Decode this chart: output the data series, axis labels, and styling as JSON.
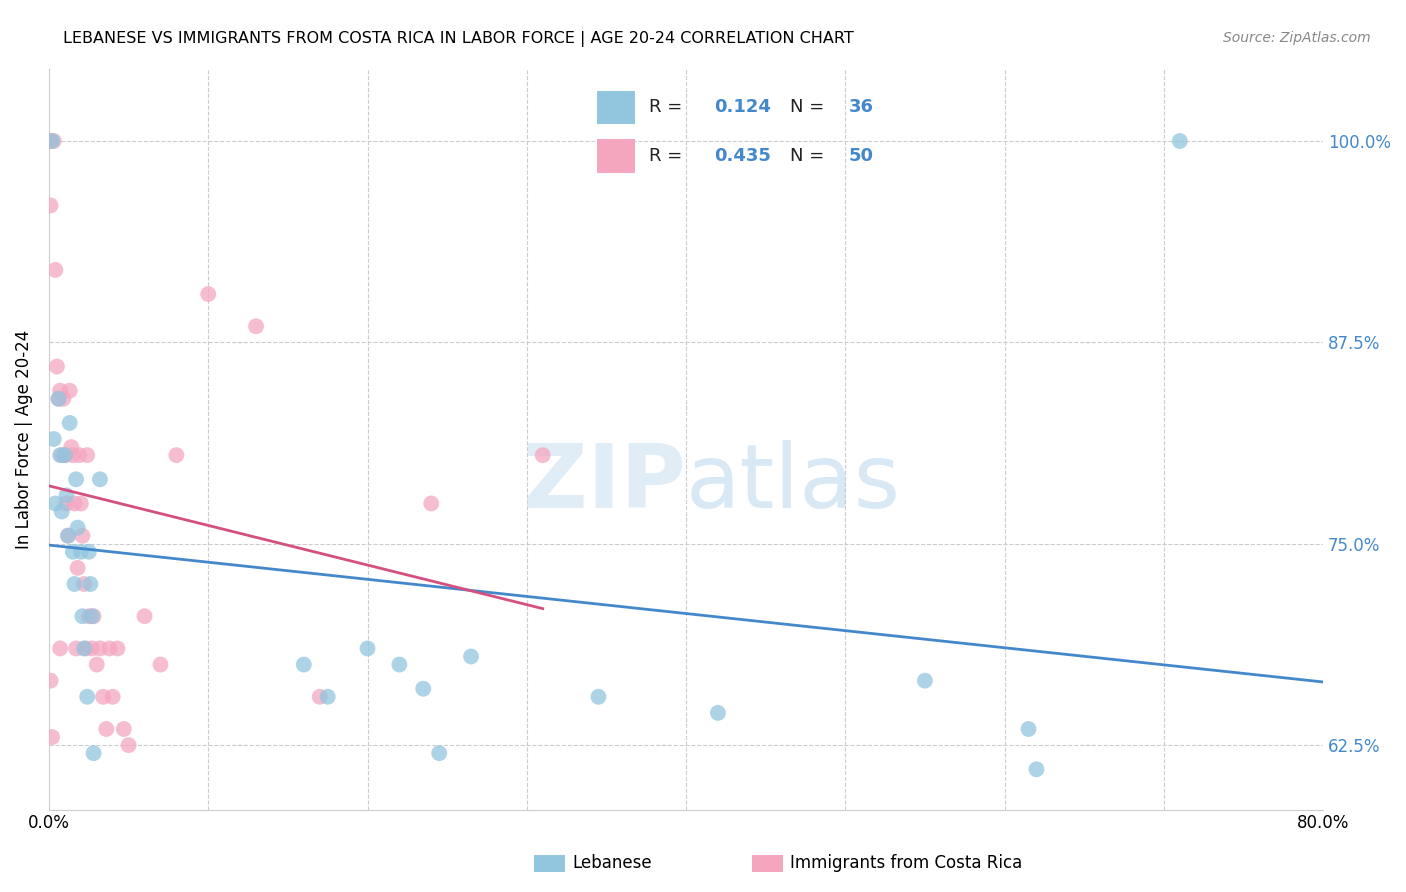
{
  "title": "LEBANESE VS IMMIGRANTS FROM COSTA RICA IN LABOR FORCE | AGE 20-24 CORRELATION CHART",
  "source": "Source: ZipAtlas.com",
  "ylabel": "In Labor Force | Age 20-24",
  "watermark_zip": "ZIP",
  "watermark_atlas": "atlas",
  "legend1_label": "Lebanese",
  "legend2_label": "Immigrants from Costa Rica",
  "R1": 0.124,
  "N1": 36,
  "R2": 0.435,
  "N2": 50,
  "blue_color": "#92c5de",
  "pink_color": "#f4a6bf",
  "blue_line_color": "#4488cc",
  "pink_line_color": "#d45080",
  "xmin": 0.0,
  "xmax": 0.8,
  "ymin": 0.585,
  "ymax": 1.045,
  "yticks": [
    0.625,
    0.75,
    0.875,
    1.0
  ],
  "ytick_labels": [
    "62.5%",
    "75.0%",
    "87.5%",
    "100.0%"
  ],
  "xticks": [
    0.0,
    0.1,
    0.2,
    0.3,
    0.4,
    0.5,
    0.6,
    0.7,
    0.8
  ],
  "xtick_labels": [
    "0.0%",
    "",
    "",
    "",
    "",
    "",
    "",
    "",
    "80.0%"
  ],
  "blue_x": [
    0.002,
    0.003,
    0.004,
    0.006,
    0.007,
    0.008,
    0.01,
    0.011,
    0.012,
    0.013,
    0.015,
    0.016,
    0.017,
    0.018,
    0.02,
    0.021,
    0.022,
    0.024,
    0.025,
    0.026,
    0.027,
    0.028,
    0.032,
    0.16,
    0.175,
    0.2,
    0.22,
    0.235,
    0.245,
    0.265,
    0.345,
    0.42,
    0.55,
    0.615,
    0.62,
    0.71
  ],
  "blue_y": [
    1.0,
    0.815,
    0.775,
    0.84,
    0.805,
    0.77,
    0.805,
    0.78,
    0.755,
    0.825,
    0.745,
    0.725,
    0.79,
    0.76,
    0.745,
    0.705,
    0.685,
    0.655,
    0.745,
    0.725,
    0.705,
    0.62,
    0.79,
    0.675,
    0.655,
    0.685,
    0.675,
    0.66,
    0.62,
    0.68,
    0.655,
    0.645,
    0.665,
    0.635,
    0.61,
    1.0
  ],
  "pink_x": [
    0.0,
    0.0,
    0.001,
    0.001,
    0.001,
    0.001,
    0.002,
    0.003,
    0.004,
    0.005,
    0.006,
    0.007,
    0.007,
    0.008,
    0.009,
    0.01,
    0.011,
    0.012,
    0.013,
    0.014,
    0.015,
    0.016,
    0.017,
    0.018,
    0.019,
    0.02,
    0.021,
    0.022,
    0.023,
    0.024,
    0.025,
    0.027,
    0.028,
    0.03,
    0.032,
    0.034,
    0.036,
    0.038,
    0.04,
    0.043,
    0.047,
    0.05,
    0.06,
    0.07,
    0.08,
    0.1,
    0.13,
    0.17,
    0.24,
    0.31
  ],
  "pink_y": [
    1.0,
    1.0,
    1.0,
    1.0,
    0.96,
    0.665,
    0.63,
    1.0,
    0.92,
    0.86,
    0.84,
    0.685,
    0.845,
    0.805,
    0.84,
    0.805,
    0.775,
    0.755,
    0.845,
    0.81,
    0.805,
    0.775,
    0.685,
    0.735,
    0.805,
    0.775,
    0.755,
    0.725,
    0.685,
    0.805,
    0.705,
    0.685,
    0.705,
    0.675,
    0.685,
    0.655,
    0.635,
    0.685,
    0.655,
    0.685,
    0.635,
    0.625,
    0.705,
    0.675,
    0.805,
    0.905,
    0.885,
    0.655,
    0.775,
    0.805
  ]
}
